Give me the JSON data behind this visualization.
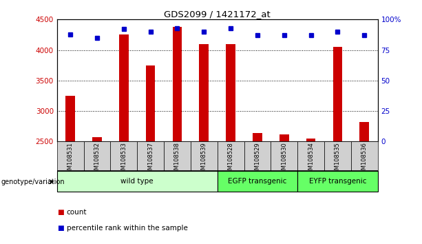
{
  "title": "GDS2099 / 1421172_at",
  "samples": [
    "GSM108531",
    "GSM108532",
    "GSM108533",
    "GSM108537",
    "GSM108538",
    "GSM108539",
    "GSM108528",
    "GSM108529",
    "GSM108530",
    "GSM108534",
    "GSM108535",
    "GSM108536"
  ],
  "counts": [
    3250,
    2570,
    4250,
    3750,
    4380,
    4100,
    4100,
    2640,
    2620,
    2550,
    4050,
    2820
  ],
  "percentiles": [
    88,
    85,
    92,
    90,
    93,
    90,
    93,
    87,
    87,
    87,
    90,
    87
  ],
  "groups": [
    {
      "label": "wild type",
      "start": 0,
      "end": 6,
      "color": "#ccffcc"
    },
    {
      "label": "EGFP transgenic",
      "start": 6,
      "end": 9,
      "color": "#66ff66"
    },
    {
      "label": "EYFP transgenic",
      "start": 9,
      "end": 12,
      "color": "#66ff66"
    }
  ],
  "ylim_left": [
    2500,
    4500
  ],
  "ylim_right": [
    0,
    100
  ],
  "yticks_left": [
    2500,
    3000,
    3500,
    4000,
    4500
  ],
  "yticks_right": [
    0,
    25,
    50,
    75,
    100
  ],
  "bar_color": "#cc0000",
  "dot_color": "#0000cc",
  "grid_color": "#000000",
  "tick_color_left": "#cc0000",
  "tick_color_right": "#0000cc",
  "genotype_label": "genotype/variation",
  "legend_items": [
    {
      "color": "#cc0000",
      "label": "count"
    },
    {
      "color": "#0000cc",
      "label": "percentile rank within the sample"
    }
  ],
  "group_colors": [
    "#ccffcc",
    "#66ff66",
    "#66ff66"
  ],
  "sample_box_color": "#d0d0d0",
  "bar_width": 0.35
}
